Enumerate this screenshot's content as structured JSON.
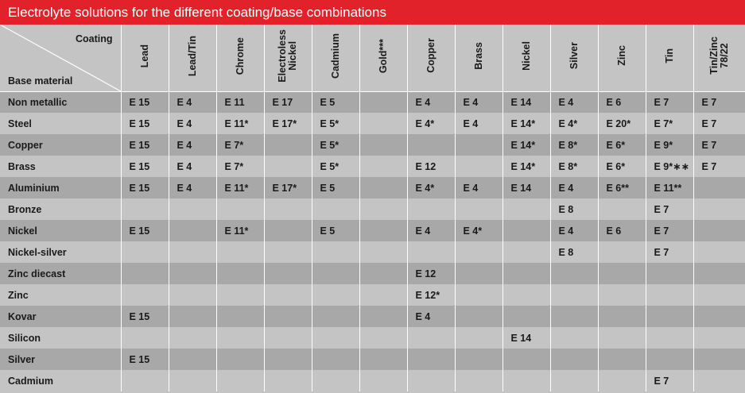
{
  "title": "Electrolyte solutions for the different coating/base combinations",
  "corner": {
    "coating_label": "Coating",
    "base_label": "Base material"
  },
  "coatings": [
    "Lead",
    "Lead/Tin",
    "Chrome",
    "Electroless\nNickel",
    "Cadmium",
    "Gold***",
    "Copper",
    "Brass",
    "Nickel",
    "Silver",
    "Zinc",
    "Tin",
    "Tin/Zinc\n78/22"
  ],
  "rows": [
    {
      "base": "Non metallic",
      "cells": [
        "E 15",
        "E 4",
        "E 11",
        "E 17",
        "E 5",
        "",
        "E 4",
        "E 4",
        "E 14",
        "E 4",
        "E 6",
        "E 7",
        "E 7"
      ]
    },
    {
      "base": "Steel",
      "cells": [
        "E 15",
        "E 4",
        "E 11*",
        "E 17*",
        "E 5*",
        "",
        "E 4*",
        "E 4",
        "E 14*",
        "E 4*",
        "E 20*",
        "E 7*",
        "E 7"
      ]
    },
    {
      "base": "Copper",
      "cells": [
        "E 15",
        "E 4",
        "E 7*",
        "",
        "E 5*",
        "",
        "",
        "",
        "E 14*",
        "E 8*",
        "E 6*",
        "E 9*",
        "E 7"
      ]
    },
    {
      "base": "Brass",
      "cells": [
        "E 15",
        "E 4",
        "E 7*",
        "",
        "E 5*",
        "",
        "E 12",
        "",
        "E 14*",
        "E 8*",
        "E 6*",
        "E 9*∗∗",
        "E 7"
      ]
    },
    {
      "base": "Aluminium",
      "cells": [
        "E 15",
        "E 4",
        "E 11*",
        "E 17*",
        "E 5",
        "",
        "E 4*",
        "E 4",
        "E 14",
        "E 4",
        "E 6**",
        "E 11**",
        ""
      ]
    },
    {
      "base": "Bronze",
      "cells": [
        "",
        "",
        "",
        "",
        "",
        "",
        "",
        "",
        "",
        "E 8",
        "",
        "E 7",
        ""
      ]
    },
    {
      "base": "Nickel",
      "cells": [
        "E 15",
        "",
        "E 11*",
        "",
        "E 5",
        "",
        "E 4",
        "E 4*",
        "",
        "E 4",
        "E 6",
        "E 7",
        ""
      ]
    },
    {
      "base": "Nickel-silver",
      "cells": [
        "",
        "",
        "",
        "",
        "",
        "",
        "",
        "",
        "",
        "E 8",
        "",
        "E 7",
        ""
      ]
    },
    {
      "base": "Zinc diecast",
      "cells": [
        "",
        "",
        "",
        "",
        "",
        "",
        "E 12",
        "",
        "",
        "",
        "",
        "",
        ""
      ]
    },
    {
      "base": "Zinc",
      "cells": [
        "",
        "",
        "",
        "",
        "",
        "",
        "E 12*",
        "",
        "",
        "",
        "",
        "",
        ""
      ]
    },
    {
      "base": "Kovar",
      "cells": [
        "E 15",
        "",
        "",
        "",
        "",
        "",
        "E 4",
        "",
        "",
        "",
        "",
        "",
        ""
      ]
    },
    {
      "base": "Silicon",
      "cells": [
        "",
        "",
        "",
        "",
        "",
        "",
        "",
        "",
        "E 14",
        "",
        "",
        "",
        ""
      ]
    },
    {
      "base": "Silver",
      "cells": [
        "E 15",
        "",
        "",
        "",
        "",
        "",
        "",
        "",
        "",
        "",
        "",
        "",
        ""
      ]
    },
    {
      "base": "Cadmium",
      "cells": [
        "",
        "",
        "",
        "",
        "",
        "",
        "",
        "",
        "",
        "",
        "",
        "E 7",
        ""
      ]
    }
  ]
}
